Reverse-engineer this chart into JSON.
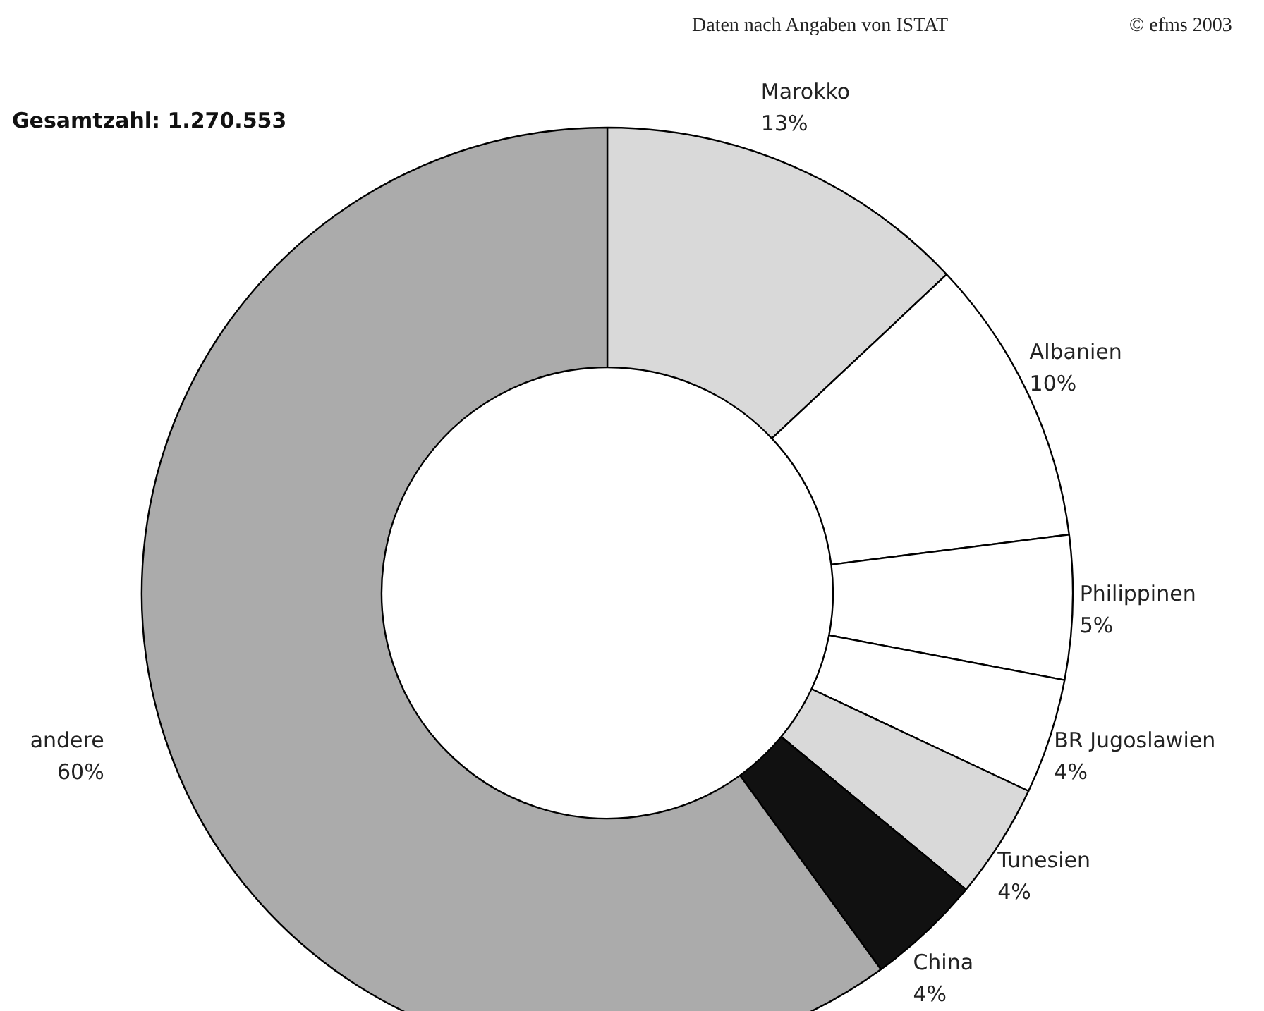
{
  "chart_data": {
    "type": "donut",
    "title": "Gesamtzahl: 1.270.553",
    "annotations": [
      "Daten nach Angaben von ISTAT",
      "© efms 2003"
    ],
    "categories": [
      "Marokko",
      "Albanien",
      "Philippinen",
      "BR Jugoslawien",
      "Tunesien",
      "China",
      "andere"
    ],
    "values": [
      13,
      10,
      5,
      4,
      4,
      4,
      60
    ],
    "value_labels": [
      "13%",
      "10%",
      "5%",
      "4%",
      "4%",
      "4%",
      "60%"
    ],
    "colors": [
      "#d9d9d9",
      "#ffffff",
      "#ffffff",
      "#ffffff",
      "#d9d9d9",
      "#111111",
      "#ababab"
    ],
    "legend": false
  }
}
